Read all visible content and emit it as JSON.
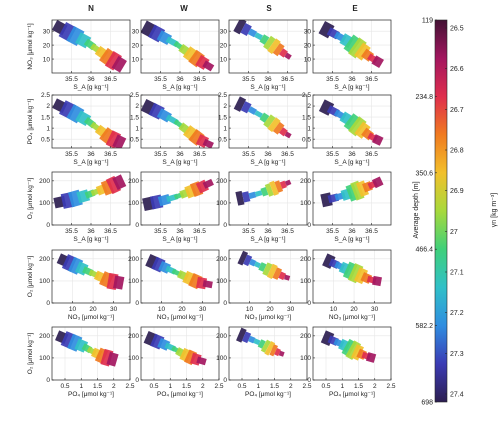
{
  "chart_data": {
    "type": "scatter",
    "columns": [
      "N",
      "W",
      "S",
      "E"
    ],
    "rows": [
      {
        "ylabel": "NO₃ [μmol kg⁻¹]",
        "xlabel": "S_A [g kg⁻¹]",
        "xlim": [
          35,
          37
        ],
        "ylim": [
          0,
          38
        ],
        "xticks": [
          "35.5",
          "36",
          "36.5"
        ],
        "xtick_values": [
          35.5,
          36,
          36.5
        ],
        "yticks": [
          "10",
          "20",
          "30"
        ],
        "ytick_values": [
          10,
          20,
          30
        ],
        "points": [
          [
            35.1,
            34
          ],
          [
            35.5,
            28
          ],
          [
            35.9,
            22
          ],
          [
            36.2,
            16
          ],
          [
            36.5,
            10
          ],
          [
            36.8,
            5
          ]
        ],
        "width": 0.32
      },
      {
        "ylabel": "PO₄ [μmol kg⁻¹]",
        "xlabel": "S_A [g kg⁻¹]",
        "xlim": [
          35,
          37
        ],
        "ylim": [
          0.1,
          2.5
        ],
        "xticks": [
          "35.5",
          "36",
          "36.5"
        ],
        "xtick_values": [
          35.5,
          36,
          36.5
        ],
        "yticks": [
          "0.5",
          "1",
          "1.5",
          "2",
          "2.5"
        ],
        "ytick_values": [
          0.5,
          1,
          1.5,
          2,
          2.5
        ],
        "points": [
          [
            35.1,
            2.1
          ],
          [
            35.5,
            1.75
          ],
          [
            35.9,
            1.35
          ],
          [
            36.2,
            0.95
          ],
          [
            36.5,
            0.55
          ],
          [
            36.8,
            0.3
          ]
        ],
        "width": 0.3
      },
      {
        "ylabel": "O₂ [μmol kg⁻¹]",
        "xlabel": "S_A [g kg⁻¹]",
        "xlim": [
          35,
          37
        ],
        "ylim": [
          0,
          240
        ],
        "xticks": [
          "35.5",
          "36",
          "36.5"
        ],
        "xtick_values": [
          35.5,
          36,
          36.5
        ],
        "yticks": [
          "0",
          "100",
          "200"
        ],
        "ytick_values": [
          0,
          100,
          200
        ],
        "points": [
          [
            35.1,
            100
          ],
          [
            35.5,
            115
          ],
          [
            35.9,
            135
          ],
          [
            36.2,
            155
          ],
          [
            36.5,
            175
          ],
          [
            36.8,
            200
          ]
        ],
        "width": 0.3
      },
      {
        "ylabel": "O₂ [μmol kg⁻¹]",
        "xlabel": "NO₃ [μmol kg⁻¹]",
        "xlim": [
          0,
          38
        ],
        "ylim": [
          0,
          240
        ],
        "xticks": [
          "10",
          "20",
          "30"
        ],
        "xtick_values": [
          10,
          20,
          30
        ],
        "yticks": [
          "0",
          "100",
          "200"
        ],
        "ytick_values": [
          0,
          100,
          200
        ],
        "points": [
          [
            4,
            200
          ],
          [
            10,
            175
          ],
          [
            16,
            150
          ],
          [
            22,
            125
          ],
          [
            28,
            100
          ],
          [
            34,
            90
          ]
        ],
        "width": 0.3
      },
      {
        "ylabel": "O₂ [μmol kg⁻¹]",
        "xlabel": "PO₄ [μmol kg⁻¹]",
        "xlim": [
          0.1,
          2.5
        ],
        "ylim": [
          0,
          240
        ],
        "xticks": [
          "0.5",
          "1",
          "1.5",
          "2",
          "2.5"
        ],
        "xtick_values": [
          0.5,
          1,
          1.5,
          2,
          2.5
        ],
        "yticks": [
          "0",
          "100",
          "200"
        ],
        "ytick_values": [
          0,
          100,
          200
        ],
        "points": [
          [
            0.3,
            200
          ],
          [
            0.7,
            175
          ],
          [
            1.1,
            150
          ],
          [
            1.4,
            125
          ],
          [
            1.7,
            105
          ],
          [
            2.05,
            90
          ]
        ],
        "width": 0.3
      }
    ],
    "colorbar": {
      "left_label": "Average depth [m]",
      "left_ticks": [
        "119",
        "234.8",
        "350.6",
        "466.4",
        "582.2",
        "698"
      ],
      "right_label": "γn [kg m⁻³]",
      "right_ticks": [
        "26.5",
        "26.6",
        "26.7",
        "26.8",
        "26.9",
        "27",
        "27.1",
        "27.2",
        "27.3",
        "27.4"
      ],
      "colors": [
        "#2c1e50",
        "#3b3bb4",
        "#2f8de0",
        "#30c0c8",
        "#3fd07a",
        "#a7d93c",
        "#f2c02b",
        "#f07a20",
        "#df2e4d",
        "#a3165f",
        "#431234"
      ]
    }
  }
}
